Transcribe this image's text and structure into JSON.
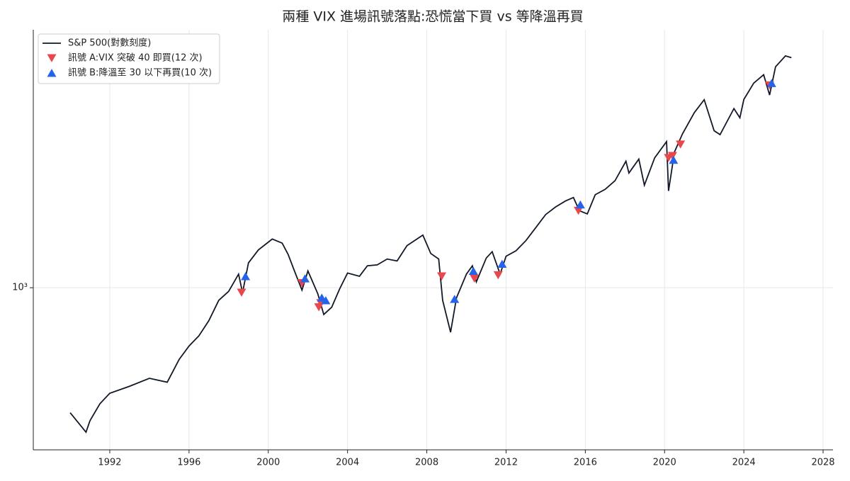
{
  "chart_data": {
    "type": "line",
    "title": "兩種 VIX 進場訊號落點:恐慌當下買 vs 等降溫再買",
    "log_scale": true,
    "grid": true,
    "legend": "upper left",
    "xlim": [
      1988.14,
      2028.5
    ],
    "xticks": [
      1992,
      1996,
      2000,
      2004,
      2008,
      2012,
      2016,
      2020,
      2024,
      2028
    ],
    "ylim": [
      259,
      8580
    ],
    "yticks": [
      {
        "value": 1000,
        "label": "10³"
      }
    ],
    "series": [
      {
        "name": "S&P 500(對數刻度)",
        "color": "#111827",
        "kind": "line",
        "x": [
          1990.0,
          1990.8,
          1991.0,
          1991.5,
          1992,
          1993,
          1994,
          1994.9,
          1995.5,
          1996,
          1996.5,
          1997,
          1997.5,
          1998,
          1998.5,
          1998.7,
          1999,
          1999.5,
          2000.2,
          2000.7,
          2001,
          2001.3,
          2001.7,
          2002,
          2002.5,
          2002.8,
          2003.2,
          2003.6,
          2004,
          2004.6,
          2005,
          2005.5,
          2006,
          2006.5,
          2007,
          2007.8,
          2008.2,
          2008.6,
          2008.8,
          2009.2,
          2009.5,
          2010,
          2010.3,
          2010.5,
          2011,
          2011.3,
          2011.7,
          2012,
          2012.5,
          2013,
          2013.5,
          2014,
          2014.5,
          2015,
          2015.4,
          2015.7,
          2016.1,
          2016.5,
          2017,
          2017.5,
          2018.05,
          2018.2,
          2018.7,
          2018.98,
          2019.5,
          2020.1,
          2020.2,
          2020.5,
          2020.9,
          2021.5,
          2022,
          2022.5,
          2022.8,
          2023.5,
          2023.8,
          2024,
          2024.5,
          2025,
          2025.3,
          2025.6,
          2026.1,
          2026.4
        ],
        "values": [
          353,
          300,
          330,
          380,
          415,
          440,
          470,
          455,
          550,
          615,
          670,
          760,
          900,
          970,
          1120,
          960,
          1230,
          1370,
          1500,
          1450,
          1320,
          1160,
          980,
          1150,
          950,
          800,
          850,
          990,
          1130,
          1100,
          1200,
          1210,
          1270,
          1250,
          1420,
          1550,
          1330,
          1270,
          900,
          690,
          920,
          1120,
          1200,
          1050,
          1280,
          1350,
          1120,
          1300,
          1360,
          1480,
          1650,
          1840,
          1960,
          2060,
          2120,
          1900,
          1850,
          2170,
          2270,
          2440,
          2870,
          2600,
          2920,
          2350,
          2950,
          3380,
          2240,
          3100,
          3600,
          4300,
          4790,
          3700,
          3580,
          4450,
          4120,
          4800,
          5500,
          5900,
          4980,
          6300,
          6900,
          6800
        ]
      },
      {
        "name": "訊號 A:VIX 突破 40 即買(12 次)",
        "color": "#e8474c",
        "kind": "down",
        "x": [
          1998.65,
          2001.7,
          2002.55,
          2002.65,
          2008.75,
          2010.4,
          2011.6,
          2015.65,
          2020.2,
          2020.4,
          2020.8,
          2025.3
        ],
        "values": [
          960,
          1040,
          850,
          880,
          1100,
          1080,
          1110,
          1900,
          2950,
          3000,
          3300,
          5400
        ]
      },
      {
        "name": "訊號 B:降溫至 30 以下再買(10 次)",
        "color": "#2563eb",
        "kind": "up",
        "x": [
          1998.85,
          2001.85,
          2002.7,
          2002.9,
          2009.4,
          2010.35,
          2011.8,
          2015.75,
          2020.45,
          2025.4
        ],
        "values": [
          1100,
          1080,
          920,
          900,
          910,
          1150,
          1220,
          2000,
          2900,
          5500
        ]
      }
    ]
  }
}
